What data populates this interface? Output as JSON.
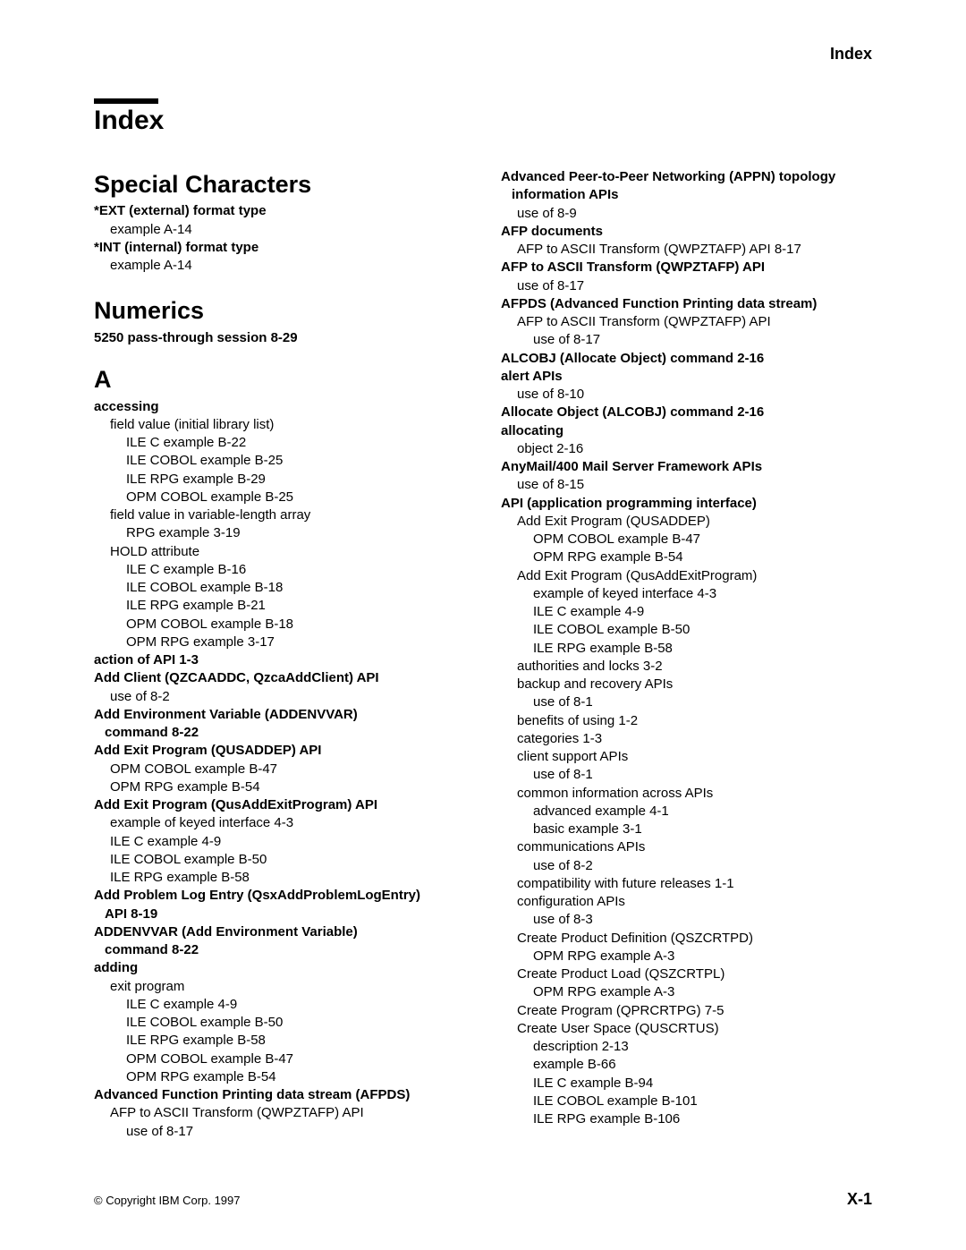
{
  "header": {
    "right": "Index"
  },
  "title": "Index",
  "footer": {
    "copyright": "© Copyright IBM Corp. 1997",
    "pagenum": "X-1"
  },
  "left": {
    "sec1_head": "Special Characters",
    "sec1": [
      {
        "t": "*EXT (external) format type",
        "b": true
      },
      {
        "t": "example   A-14",
        "i": 1
      },
      {
        "t": "*INT (internal) format type",
        "b": true
      },
      {
        "t": "example   A-14",
        "i": 1
      }
    ],
    "sec2_head": "Numerics",
    "sec2_line": "5250 pass-through session   8-29",
    "sec3_head": "A",
    "sec3": [
      {
        "t": "accessing",
        "b": true
      },
      {
        "t": "field value (initial library list)",
        "i": 1
      },
      {
        "t": "ILE C example   B-22",
        "i": 2
      },
      {
        "t": "ILE COBOL example   B-25",
        "i": 2
      },
      {
        "t": "ILE RPG example   B-29",
        "i": 2
      },
      {
        "t": "OPM COBOL example   B-25",
        "i": 2
      },
      {
        "t": "field value in variable-length array",
        "i": 1
      },
      {
        "t": "RPG example   3-19",
        "i": 2
      },
      {
        "t": "HOLD attribute",
        "i": 1
      },
      {
        "t": "ILE C example   B-16",
        "i": 2
      },
      {
        "t": "ILE COBOL example   B-18",
        "i": 2
      },
      {
        "t": "ILE RPG example   B-21",
        "i": 2
      },
      {
        "t": "OPM COBOL example   B-18",
        "i": 2
      },
      {
        "t": "OPM RPG example   3-17",
        "i": 2
      },
      {
        "t": "action of API   1-3",
        "b": true
      },
      {
        "t": "Add Client (QZCAADDC, QzcaAddClient) API",
        "b": true
      },
      {
        "t": "use of   8-2",
        "i": 1
      },
      {
        "t": "Add Environment Variable (ADDENVVAR)",
        "b": true
      },
      {
        "t": "command   8-22",
        "b": true,
        "i": 0,
        "hang": true
      },
      {
        "t": "Add Exit Program (QUSADDEP) API",
        "b": true
      },
      {
        "t": "OPM COBOL example   B-47",
        "i": 1
      },
      {
        "t": "OPM RPG example   B-54",
        "i": 1
      },
      {
        "t": "Add Exit Program (QusAddExitProgram) API",
        "b": true
      },
      {
        "t": "example of keyed interface   4-3",
        "i": 1
      },
      {
        "t": "ILE C example   4-9",
        "i": 1
      },
      {
        "t": "ILE COBOL example   B-50",
        "i": 1
      },
      {
        "t": "ILE RPG example   B-58",
        "i": 1
      },
      {
        "t": "Add Problem Log Entry (QsxAddProblemLogEntry)",
        "b": true
      },
      {
        "t": "API   8-19",
        "b": true,
        "hang": true
      },
      {
        "t": "ADDENVVAR (Add Environment Variable)",
        "b": true
      },
      {
        "t": "command   8-22",
        "b": true,
        "hang": true
      },
      {
        "t": "adding",
        "b": true
      },
      {
        "t": "exit program",
        "i": 1
      },
      {
        "t": "ILE C example   4-9",
        "i": 2
      },
      {
        "t": "ILE COBOL example   B-50",
        "i": 2
      },
      {
        "t": "ILE RPG example   B-58",
        "i": 2
      },
      {
        "t": "OPM COBOL example   B-47",
        "i": 2
      },
      {
        "t": "OPM RPG example   B-54",
        "i": 2
      },
      {
        "t": "Advanced Function Printing data stream (AFPDS)",
        "b": true
      },
      {
        "t": "AFP to ASCII Transform (QWPZTAFP) API",
        "i": 1
      },
      {
        "t": "use of   8-17",
        "i": 2
      }
    ]
  },
  "right": [
    {
      "t": "Advanced Peer-to-Peer Networking (APPN) topology",
      "b": true
    },
    {
      "t": "information APIs",
      "b": true,
      "hang": true
    },
    {
      "t": "use of   8-9",
      "i": 1
    },
    {
      "t": "AFP documents",
      "b": true
    },
    {
      "t": "AFP to ASCII Transform (QWPZTAFP) API   8-17",
      "i": 1
    },
    {
      "t": "AFP to ASCII Transform (QWPZTAFP) API",
      "b": true
    },
    {
      "t": "use of   8-17",
      "i": 1
    },
    {
      "t": "AFPDS (Advanced Function Printing data stream)",
      "b": true
    },
    {
      "t": "AFP to ASCII Transform (QWPZTAFP) API",
      "i": 1
    },
    {
      "t": "use of   8-17",
      "i": 2
    },
    {
      "t": "ALCOBJ (Allocate Object) command   2-16",
      "b": true
    },
    {
      "t": "alert APIs",
      "b": true
    },
    {
      "t": "use of   8-10",
      "i": 1
    },
    {
      "t": "Allocate Object (ALCOBJ) command   2-16",
      "b": true
    },
    {
      "t": "allocating",
      "b": true
    },
    {
      "t": "object   2-16",
      "i": 1
    },
    {
      "t": "AnyMail/400 Mail Server Framework APIs",
      "b": true
    },
    {
      "t": "use of   8-15",
      "i": 1
    },
    {
      "t": "API (application programming interface)",
      "b": true
    },
    {
      "t": "Add Exit Program (QUSADDEP)",
      "i": 1
    },
    {
      "t": "OPM COBOL example   B-47",
      "i": 2
    },
    {
      "t": "OPM RPG example   B-54",
      "i": 2
    },
    {
      "t": "Add Exit Program (QusAddExitProgram)",
      "i": 1
    },
    {
      "t": "example of keyed interface   4-3",
      "i": 2
    },
    {
      "t": "ILE C example   4-9",
      "i": 2
    },
    {
      "t": "ILE COBOL example   B-50",
      "i": 2
    },
    {
      "t": "ILE RPG example   B-58",
      "i": 2
    },
    {
      "t": "authorities and locks   3-2",
      "i": 1
    },
    {
      "t": "backup and recovery APIs",
      "i": 1
    },
    {
      "t": "use of   8-1",
      "i": 2
    },
    {
      "t": "benefits of using   1-2",
      "i": 1
    },
    {
      "t": "categories   1-3",
      "i": 1
    },
    {
      "t": "client support APIs",
      "i": 1
    },
    {
      "t": "use of   8-1",
      "i": 2
    },
    {
      "t": "common information across APIs",
      "i": 1
    },
    {
      "t": "advanced example   4-1",
      "i": 2
    },
    {
      "t": "basic example   3-1",
      "i": 2
    },
    {
      "t": "communications APIs",
      "i": 1
    },
    {
      "t": "use of   8-2",
      "i": 2
    },
    {
      "t": "compatibility with future releases   1-1",
      "i": 1
    },
    {
      "t": "configuration APIs",
      "i": 1
    },
    {
      "t": "use of   8-3",
      "i": 2
    },
    {
      "t": "Create Product Definition (QSZCRTPD)",
      "i": 1
    },
    {
      "t": "OPM RPG example   A-3",
      "i": 2
    },
    {
      "t": "Create Product Load (QSZCRTPL)",
      "i": 1
    },
    {
      "t": "OPM RPG example   A-3",
      "i": 2
    },
    {
      "t": "Create Program (QPRCRTPG)   7-5",
      "i": 1
    },
    {
      "t": "Create User Space (QUSCRTUS)",
      "i": 1
    },
    {
      "t": "description   2-13",
      "i": 2
    },
    {
      "t": "example   B-66",
      "i": 2
    },
    {
      "t": "ILE C example   B-94",
      "i": 2
    },
    {
      "t": "ILE COBOL example   B-101",
      "i": 2
    },
    {
      "t": "ILE RPG example   B-106",
      "i": 2
    }
  ]
}
